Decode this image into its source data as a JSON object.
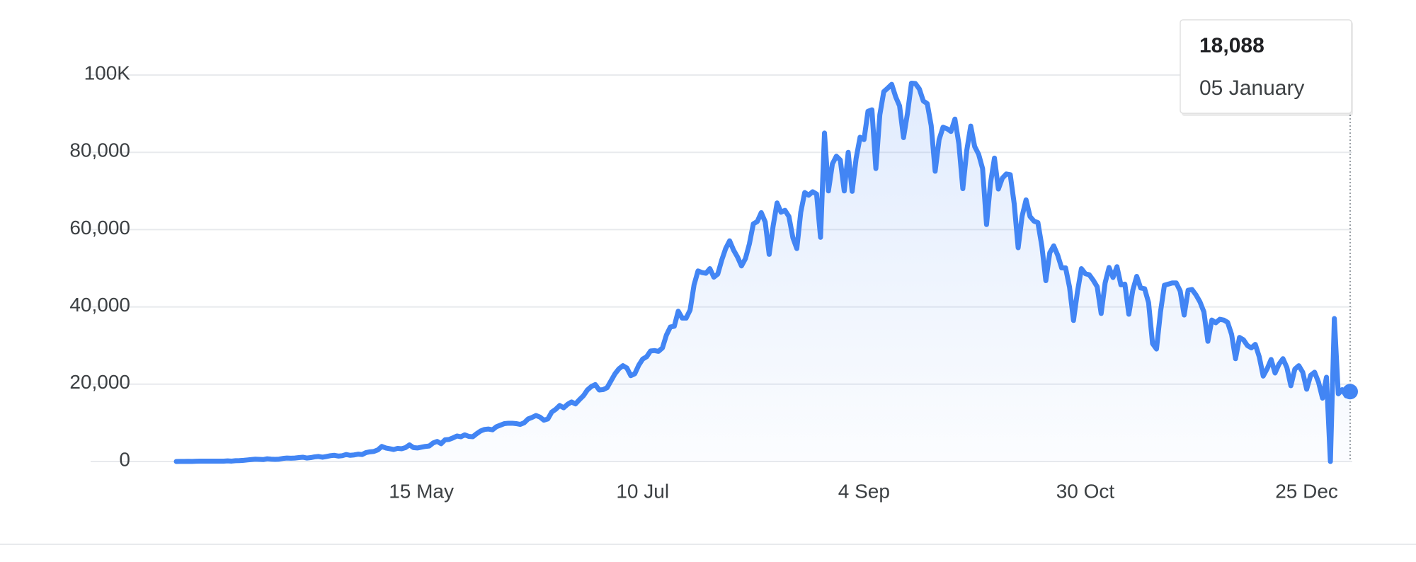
{
  "chart_data": {
    "type": "line",
    "categories": [
      null,
      null,
      null,
      null,
      null,
      null,
      null,
      null,
      null,
      null,
      null,
      null,
      null,
      null,
      null,
      null,
      null,
      null,
      null,
      null,
      null,
      null,
      null,
      null,
      null,
      null,
      null,
      null,
      null,
      null,
      null,
      null,
      null,
      null,
      null,
      null,
      null,
      null,
      null,
      null,
      null,
      null,
      null,
      null,
      null,
      null,
      null,
      null,
      null,
      null,
      null,
      null,
      null,
      null,
      null,
      null,
      null,
      null,
      null,
      null,
      null,
      null,
      "15 May",
      null,
      null,
      null,
      null,
      null,
      null,
      null,
      null,
      null,
      null,
      null,
      null,
      null,
      null,
      null,
      null,
      null,
      null,
      null,
      null,
      null,
      null,
      null,
      null,
      null,
      null,
      null,
      null,
      null,
      null,
      null,
      null,
      null,
      null,
      null,
      null,
      null,
      null,
      null,
      null,
      null,
      null,
      null,
      null,
      null,
      null,
      null,
      null,
      null,
      null,
      null,
      null,
      null,
      null,
      null,
      "10 Jul",
      null,
      null,
      null,
      null,
      null,
      null,
      null,
      null,
      null,
      null,
      null,
      null,
      null,
      null,
      null,
      null,
      null,
      null,
      null,
      null,
      null,
      null,
      null,
      null,
      null,
      null,
      null,
      null,
      null,
      null,
      null,
      null,
      null,
      null,
      null,
      null,
      null,
      null,
      null,
      null,
      null,
      null,
      null,
      null,
      null,
      null,
      null,
      null,
      null,
      null,
      null,
      null,
      null,
      null,
      null,
      "4 Sep",
      null,
      null,
      null,
      null,
      null,
      null,
      null,
      null,
      null,
      null,
      null,
      null,
      null,
      null,
      null,
      null,
      null,
      null,
      null,
      null,
      null,
      null,
      null,
      null,
      null,
      null,
      null,
      null,
      null,
      null,
      null,
      null,
      null,
      null,
      null,
      null,
      null,
      null,
      null,
      null,
      null,
      null,
      null,
      null,
      null,
      null,
      null,
      null,
      null,
      null,
      null,
      null,
      null,
      null,
      null,
      "30 Oct",
      null,
      null,
      null,
      null,
      null,
      null,
      null,
      null,
      null,
      null,
      null,
      null,
      null,
      null,
      null,
      null,
      null,
      null,
      null,
      null,
      null,
      null,
      null,
      null,
      null,
      null,
      null,
      null,
      null,
      null,
      null,
      null,
      null,
      null,
      null,
      null,
      null,
      null,
      null,
      null,
      null,
      null,
      null,
      null,
      null,
      null,
      null,
      null,
      null,
      null,
      null,
      null,
      null,
      null,
      null,
      "25 Dec",
      null,
      null,
      null,
      null,
      null,
      null,
      null,
      null,
      null,
      null,
      "05 January"
    ],
    "series": [
      {
        "color": "#4285f4",
        "values": [
          10,
          20,
          30,
          50,
          30,
          60,
          90,
          80,
          100,
          90,
          100,
          80,
          90,
          150,
          100,
          200,
          230,
          300,
          400,
          500,
          600,
          550,
          500,
          700,
          600,
          550,
          600,
          800,
          900,
          850,
          900,
          1000,
          1100,
          900,
          1000,
          1200,
          1300,
          1100,
          1300,
          1500,
          1600,
          1400,
          1500,
          1800,
          1600,
          1700,
          1900,
          1800,
          2300,
          2500,
          2600,
          3000,
          3900,
          3500,
          3300,
          3100,
          3400,
          3300,
          3600,
          4300,
          3600,
          3500,
          3700,
          3900,
          4000,
          4800,
          5200,
          4600,
          5600,
          5700,
          6100,
          6600,
          6400,
          6900,
          6500,
          6400,
          7200,
          7900,
          8300,
          8400,
          8200,
          9000,
          9400,
          9800,
          9900,
          9900,
          9800,
          9600,
          10000,
          11000,
          11400,
          11900,
          11500,
          10700,
          11000,
          12800,
          13500,
          14500,
          13900,
          14800,
          15400,
          14900,
          16000,
          17000,
          18500,
          19400,
          19900,
          18500,
          18600,
          19100,
          20900,
          22700,
          24000,
          24800,
          24200,
          22200,
          22700,
          24900,
          26500,
          27100,
          28600,
          28700,
          28500,
          29400,
          32700,
          34800,
          35000,
          38900,
          37100,
          37100,
          39200,
          45700,
          49300,
          48900,
          48700,
          49900,
          47700,
          48500,
          52100,
          55100,
          57100,
          54700,
          52900,
          50600,
          52500,
          56300,
          61500,
          62100,
          64400,
          62000,
          53600,
          60900,
          66900,
          64500,
          65000,
          63400,
          57900,
          55100,
          64500,
          69600,
          68900,
          69800,
          69200,
          58000,
          85000,
          70000,
          77000,
          79000,
          78000,
          70000,
          80000,
          69900,
          78400,
          83900,
          83300,
          90600,
          91000,
          75800,
          89700,
          95700,
          96600,
          97600,
          94400,
          92000,
          83800,
          90100,
          97900,
          97800,
          96400,
          93300,
          92600,
          86900,
          75100,
          83300,
          86500,
          86100,
          85400,
          88600,
          82200,
          70600,
          80500,
          86800,
          81500,
          79500,
          75800,
          61300,
          72000,
          78500,
          70500,
          73300,
          74400,
          74200,
          66700,
          55300,
          63500,
          67700,
          63400,
          62200,
          61800,
          55700,
          46800,
          54000,
          55800,
          53400,
          50100,
          50100,
          45100,
          36500,
          43900,
          49900,
          48600,
          48300,
          46900,
          45200,
          38300,
          46200,
          50200,
          47600,
          50400,
          45700,
          45900,
          38100,
          44300,
          47900,
          44900,
          44700,
          41100,
          30500,
          29100,
          38600,
          45600,
          45900,
          46200,
          46200,
          44100,
          37900,
          44300,
          44500,
          43100,
          41300,
          38700,
          31100,
          36600,
          35900,
          36800,
          36600,
          36000,
          32900,
          26600,
          32100,
          31500,
          30000,
          29400,
          30300,
          27100,
          22100,
          24000,
          26400,
          22900,
          25200,
          26600,
          24300,
          19600,
          23900,
          24800,
          23100,
          18700,
          22300,
          23100,
          20500,
          16400,
          21800,
          0,
          37000,
          17500,
          18600,
          17000,
          18088
        ]
      }
    ],
    "tooltip": {
      "label": "18,088"
    },
    "ylim": [
      0,
      100000
    ],
    "yticks": [
      0,
      {
        "value": 20000,
        "label": "20,000"
      },
      {
        "value": 40000,
        "label": "40,000"
      },
      {
        "value": 60000,
        "label": "60,000"
      },
      {
        "value": 80000,
        "label": "80,000"
      },
      {
        "value": 100000,
        "label": "100K"
      }
    ],
    "grid": true
  }
}
